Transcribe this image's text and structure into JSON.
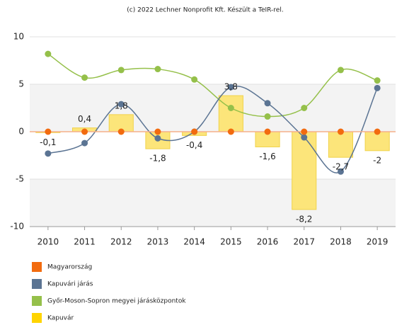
{
  "chart_data": {
    "type": "bar_line",
    "title": "(c) 2022 Lechner Nonprofit Kft. Készült a TeIR-rel.",
    "categories": [
      "2010",
      "2011",
      "2012",
      "2013",
      "2014",
      "2015",
      "2016",
      "2017",
      "2018",
      "2019"
    ],
    "series": [
      {
        "name": "Magyarország",
        "color": "#f26b0f",
        "kind": "dots",
        "values": [
          0,
          0,
          0,
          0,
          0,
          0,
          0,
          0,
          0,
          0
        ]
      },
      {
        "name": "Kapuvári járás",
        "color": "#5b7493",
        "kind": "line",
        "values": [
          -2.3,
          -1.2,
          2.9,
          -0.7,
          0,
          4.7,
          3.0,
          -0.6,
          -4.2,
          4.6
        ]
      },
      {
        "name": "Győr-Moson-Sopron megyei járásközpontok",
        "color": "#95c04a",
        "kind": "line",
        "values": [
          8.2,
          5.7,
          6.5,
          6.6,
          5.5,
          2.5,
          1.6,
          2.5,
          6.5,
          5.4
        ]
      },
      {
        "name": "Kapuvár",
        "color": "#fce57a",
        "kind": "bar",
        "values": [
          -0.1,
          0.4,
          1.8,
          -1.8,
          -0.4,
          3.8,
          -1.6,
          -8.2,
          -2.7,
          -2
        ],
        "value_labels": [
          "-0,1",
          "0,4",
          "1,8",
          "-1,8",
          "-0,4",
          "3,8",
          "-1,6",
          "-8,2",
          "-2,7",
          "-2"
        ]
      }
    ],
    "ylim": [
      -10,
      10
    ],
    "yticks": [
      -10,
      -5,
      0,
      5,
      10
    ],
    "grid": true
  }
}
